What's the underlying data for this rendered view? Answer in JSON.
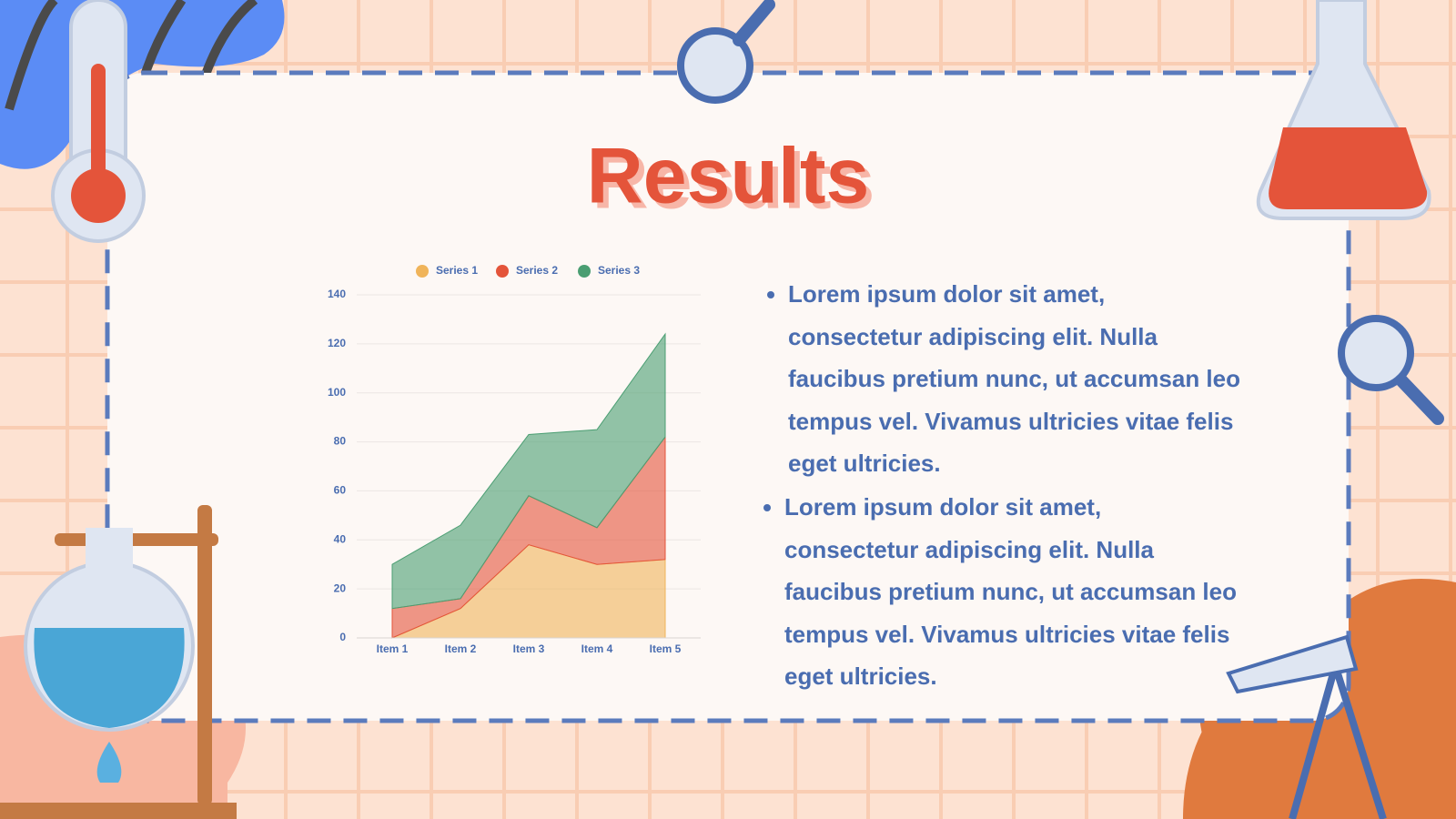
{
  "title": "Results",
  "bullets": [
    "Lorem ipsum dolor sit amet, consectetur adipiscing elit. Nulla faucibus pretium nunc, ut accumsan leo tempus vel. Vivamus ultricies vitae felis eget ultricies.",
    "Lorem ipsum dolor sit amet, consectetur adipiscing elit. Nulla faucibus pretium nunc, ut accumsan leo tempus vel. Vivamus ultricies vitae felis eget ultricies."
  ],
  "chart_data": {
    "type": "stacked_area",
    "categories": [
      "Item 1",
      "Item 2",
      "Item 3",
      "Item 4",
      "Item 5"
    ],
    "series": [
      {
        "name": "Series 1",
        "color": "#f0b45a",
        "values": [
          0,
          12,
          38,
          30,
          32
        ]
      },
      {
        "name": "Series 2",
        "color": "#e4543a",
        "values": [
          12,
          4,
          20,
          15,
          50
        ]
      },
      {
        "name": "Series 3",
        "color": "#4a9e72",
        "values": [
          18,
          30,
          25,
          40,
          42
        ]
      }
    ],
    "ylim": [
      0,
      140
    ],
    "yticks": [
      0,
      20,
      40,
      60,
      80,
      100,
      120,
      140
    ],
    "grid": true,
    "legend": "top"
  }
}
